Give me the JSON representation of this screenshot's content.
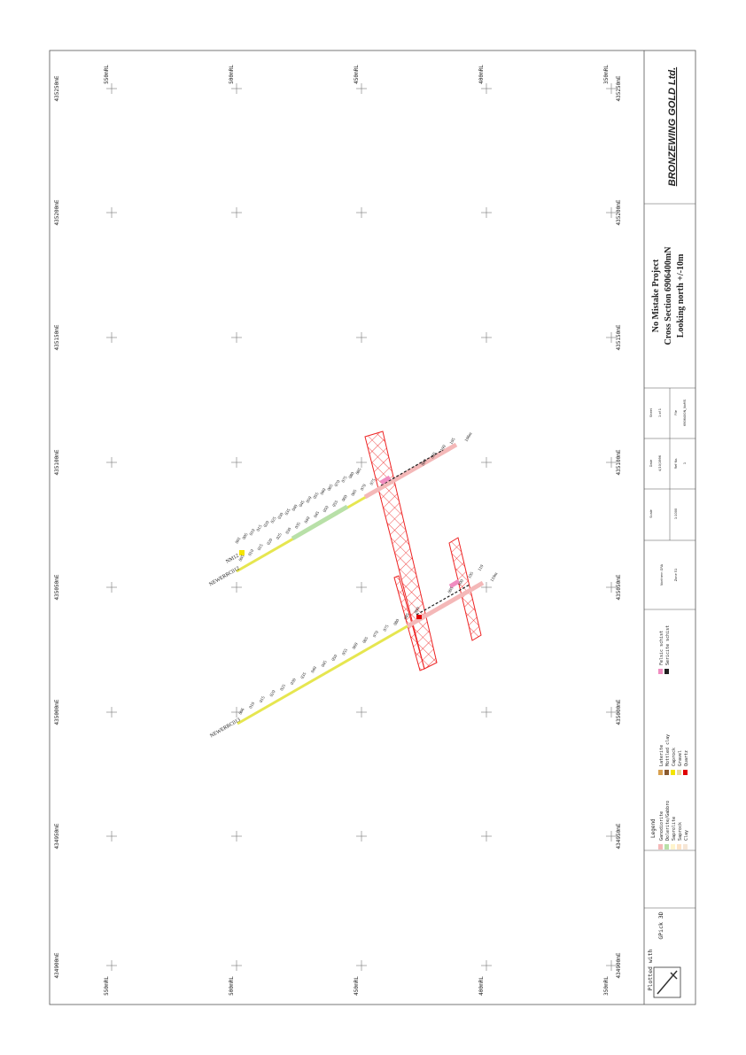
{
  "company": "BRONZEWING GOLD Ltd.",
  "project_title": "No Mistake Project",
  "section_title": "Cross Section 6906400mN",
  "view_title": "Looking north +/-10m",
  "plotted_with": "Plotted with",
  "software": "GPick 3D",
  "legend": {
    "title": "Legend",
    "items": [
      {
        "label": "Ganodiorite",
        "color": "#f4b8b8"
      },
      {
        "label": "Dolerite/Gabbro",
        "color": "#b8e0a8"
      },
      {
        "label": "Saprolite",
        "color": "#fff4cc"
      },
      {
        "label": "Saprock",
        "color": "#fde3c6"
      },
      {
        "label": "Clay",
        "color": "#f6e6d6"
      },
      {
        "label": "Laterite",
        "color": "#d8a050"
      },
      {
        "label": "Mottled clay",
        "color": "#8a5a30"
      },
      {
        "label": "Caprock",
        "color": "#f4e400"
      },
      {
        "label": "Gravel",
        "color": "#e8d8a0"
      },
      {
        "label": "Quartz",
        "color": "#e00000"
      },
      {
        "label": "Felsic schist",
        "color": "#f08cc0"
      },
      {
        "label": "Sericite schist",
        "color": "#202020"
      }
    ]
  },
  "info_grid": {
    "scale_label": "Scale",
    "scale_value": "1:1000",
    "date_label": "Date",
    "date_value": "4/10/1996",
    "ref_label": "Ref No.",
    "ref_value": "1",
    "sheet_label": "Sheet",
    "sheet_value": "1 of 1",
    "file_label": "File",
    "file_value": "6906400N_NoMS",
    "grid_label": "Northern GRA",
    "zone_label": "Zone 51"
  },
  "rl_labels": [
    "550mRL",
    "500mRL",
    "450mRL",
    "400mRL",
    "350mRL"
  ],
  "easting_labels": [
    "435250mE",
    "435200mE",
    "435150mE",
    "435100mE",
    "435050mE",
    "435000mE",
    "434950mE",
    "434900mE"
  ],
  "holes": [
    {
      "name": "NEWERRC013",
      "eoh": "",
      "depth_labels": [
        "006",
        "010",
        "015",
        "020",
        "025",
        "030",
        "035",
        "040",
        "045",
        "050",
        "055",
        "060",
        "065",
        "070",
        "075",
        "080",
        "085",
        "090"
      ]
    },
    {
      "name": "NEWERRC012",
      "eoh": "",
      "depth_labels": [
        "005",
        "010",
        "015",
        "020",
        "025",
        "030",
        "035",
        "040",
        "045",
        "050",
        "055",
        "060",
        "065",
        "070",
        "075"
      ]
    },
    {
      "name": "NM12",
      "eoh": "",
      "depth_labels": [
        "001",
        "005",
        "010",
        "015",
        "020",
        "025",
        "030",
        "035",
        "040",
        "045",
        "050",
        "055",
        "060",
        "065",
        "070",
        "075",
        "080",
        "085"
      ]
    },
    {
      "name": "",
      "eoh": "106m",
      "depth_labels": [
        "090",
        "095",
        "100",
        "105"
      ]
    },
    {
      "name": "",
      "eoh": "110m",
      "depth_labels": [
        "095",
        "100",
        "105",
        "110"
      ]
    }
  ],
  "colors": {
    "frame": "#555555",
    "grid_cross": "#777777",
    "ore_zone": "#ee2222",
    "trace": "#e6e650",
    "granodiorite": "#f4b8b8",
    "dolerite": "#b8e0a8",
    "felsic": "#f08cc0",
    "sericite": "#202020",
    "quartz": "#e00000",
    "caprock": "#f4e400"
  }
}
